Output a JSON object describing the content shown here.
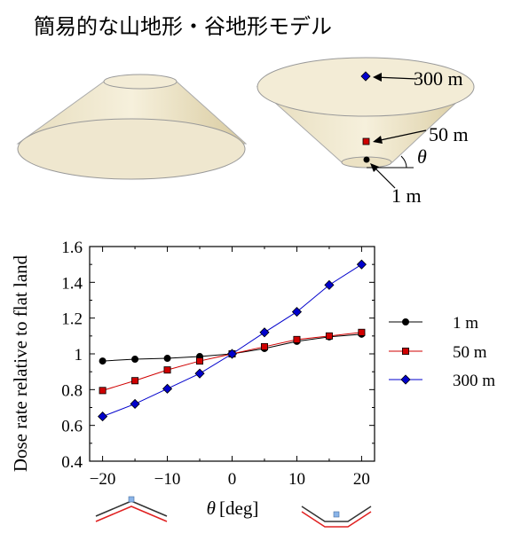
{
  "title": "簡易的な山地形・谷地形モデル",
  "models": {
    "callouts": [
      "300 m",
      "50 m",
      "1 m"
    ],
    "angle_label": "θ"
  },
  "colors": {
    "cone_fill": "#f0e8d0",
    "cone_side": "#dccfa6",
    "series_1m": "#000000",
    "series_50m": "#d00000",
    "series_300m": "#0000cc",
    "terrain_red": "#e02020",
    "terrain_dark": "#333333",
    "terrain_marker": "#8ab4e8"
  },
  "icons": [
    "mountain-profile-icon",
    "valley-profile-icon"
  ],
  "chart_data": {
    "type": "line",
    "x": [
      -20,
      -15,
      -10,
      -5,
      0,
      5,
      10,
      15,
      20
    ],
    "series": [
      {
        "name": "1 m",
        "marker": "circle",
        "values": [
          0.96,
          0.97,
          0.975,
          0.985,
          1.0,
          1.03,
          1.07,
          1.095,
          1.11
        ]
      },
      {
        "name": "50 m",
        "marker": "square",
        "values": [
          0.795,
          0.85,
          0.91,
          0.96,
          1.0,
          1.04,
          1.08,
          1.1,
          1.12
        ]
      },
      {
        "name": "300 m",
        "marker": "diamond",
        "values": [
          0.65,
          0.72,
          0.805,
          0.89,
          1.0,
          1.12,
          1.235,
          1.385,
          1.5
        ]
      }
    ],
    "xlabel_symbol": "θ",
    "xlabel_unit": "[deg]",
    "ylabel": "Dose rate relative to flat land",
    "xlim": [
      -22,
      22
    ],
    "ylim": [
      0.4,
      1.6
    ],
    "xticks": [
      -20,
      -10,
      0,
      10,
      20
    ],
    "xtick_labels": [
      "−20",
      "−10",
      "0",
      "10",
      "20"
    ],
    "yticks": [
      0.4,
      0.6,
      0.8,
      1,
      1.2,
      1.4,
      1.6
    ],
    "ytick_labels": [
      "0.4",
      "0.6",
      "0.8",
      "1",
      "1.2",
      "1.4",
      "1.6"
    ],
    "grid": false,
    "legend": "right"
  }
}
